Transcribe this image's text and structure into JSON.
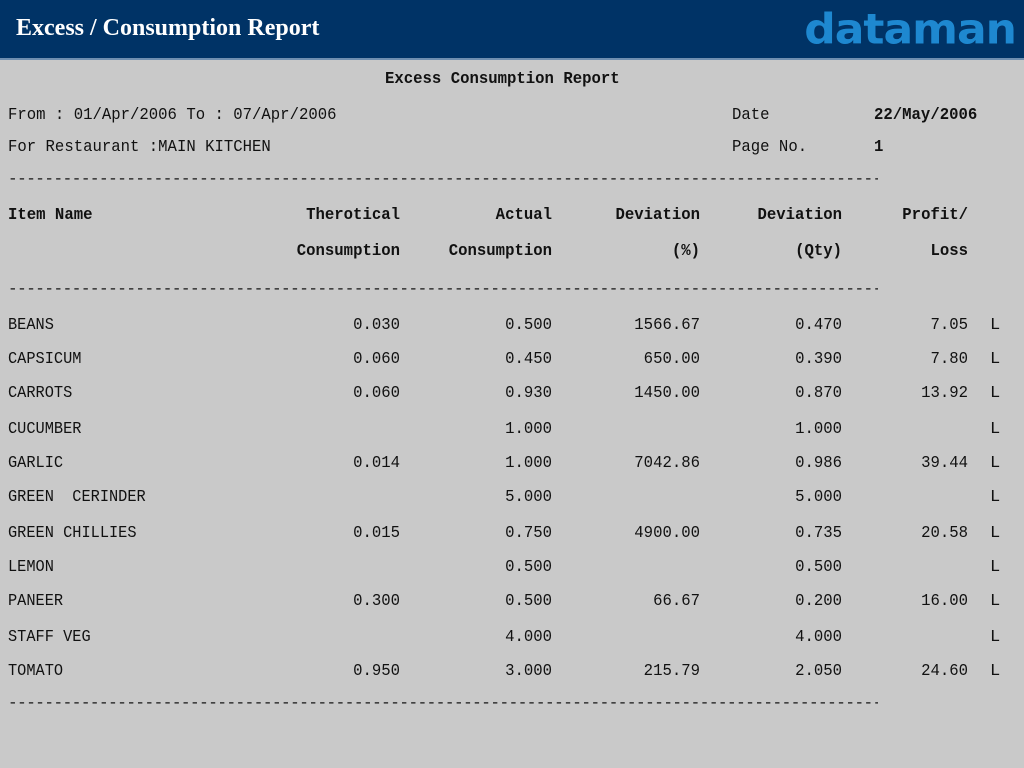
{
  "header": {
    "title": "Excess / Consumption Report",
    "logo": "dataman",
    "bg_color": "#003366",
    "logo_color": "#1e88d0"
  },
  "report": {
    "title": "Excess Consumption Report",
    "period": "From : 01/Apr/2006 To : 07/Apr/2006",
    "restaurant": "For Restaurant :MAIN KITCHEN",
    "date_label": "Date",
    "date_value": "22/May/2006",
    "page_label": "Page No.",
    "page_value": "1",
    "divider": "------------------------------------------------------------------------------------------------------------------------",
    "columns": {
      "item_name": "Item Name",
      "theo_1": "Therotical",
      "theo_2": "Consumption",
      "actual_1": "Actual",
      "actual_2": "Consumption",
      "devpct_1": "Deviation",
      "devpct_2": "(%)",
      "devqty_1": "Deviation",
      "devqty_2": "(Qty)",
      "pl_1": "Profit/",
      "pl_2": "Loss"
    },
    "rows": [
      {
        "name": "BEANS",
        "theo": "0.030",
        "actual": "0.500",
        "devpct": "1566.67",
        "devqty": "0.470",
        "pl": "7.05",
        "flag": "L"
      },
      {
        "name": "CAPSICUM",
        "theo": "0.060",
        "actual": "0.450",
        "devpct": "650.00",
        "devqty": "0.390",
        "pl": "7.80",
        "flag": "L"
      },
      {
        "name": "CARROTS",
        "theo": "0.060",
        "actual": "0.930",
        "devpct": "1450.00",
        "devqty": "0.870",
        "pl": "13.92",
        "flag": "L"
      },
      {
        "name": "CUCUMBER",
        "theo": "",
        "actual": "1.000",
        "devpct": "",
        "devqty": "1.000",
        "pl": "",
        "flag": "L"
      },
      {
        "name": "GARLIC",
        "theo": "0.014",
        "actual": "1.000",
        "devpct": "7042.86",
        "devqty": "0.986",
        "pl": "39.44",
        "flag": "L"
      },
      {
        "name": "GREEN  CERINDER",
        "theo": "",
        "actual": "5.000",
        "devpct": "",
        "devqty": "5.000",
        "pl": "",
        "flag": "L"
      },
      {
        "name": "GREEN CHILLIES",
        "theo": "0.015",
        "actual": "0.750",
        "devpct": "4900.00",
        "devqty": "0.735",
        "pl": "20.58",
        "flag": "L"
      },
      {
        "name": "LEMON",
        "theo": "",
        "actual": "0.500",
        "devpct": "",
        "devqty": "0.500",
        "pl": "",
        "flag": "L"
      },
      {
        "name": "PANEER",
        "theo": "0.300",
        "actual": "0.500",
        "devpct": "66.67",
        "devqty": "0.200",
        "pl": "16.00",
        "flag": "L"
      },
      {
        "name": "STAFF VEG",
        "theo": "",
        "actual": "4.000",
        "devpct": "",
        "devqty": "4.000",
        "pl": "",
        "flag": "L"
      },
      {
        "name": "TOMATO",
        "theo": "0.950",
        "actual": "3.000",
        "devpct": "215.79",
        "devqty": "2.050",
        "pl": "24.60",
        "flag": "L"
      }
    ]
  }
}
